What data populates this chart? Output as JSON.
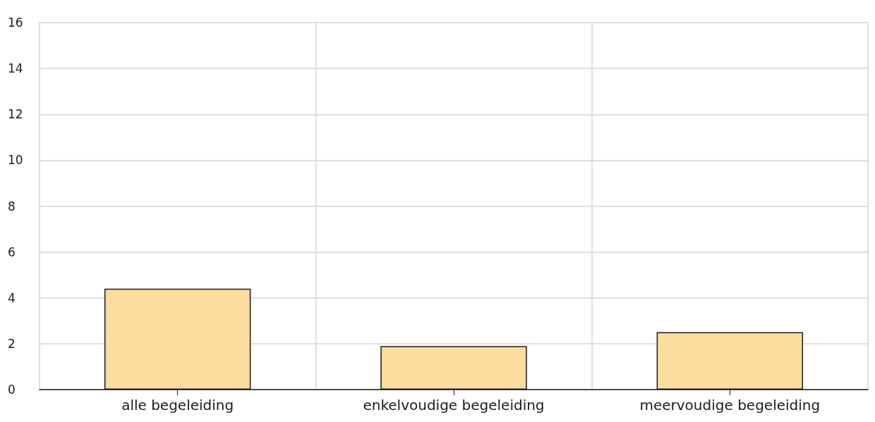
{
  "chart_data": {
    "type": "bar",
    "categories": [
      "alle begeleiding",
      "enkelvoudige begeleiding",
      "meervoudige begeleiding"
    ],
    "values": [
      4.4,
      1.9,
      2.5
    ],
    "color": "#fcdc9f",
    "ylim": [
      0,
      16
    ],
    "yticks": [
      0,
      2,
      4,
      6,
      8,
      10,
      12,
      14,
      16
    ],
    "grid": true
  }
}
